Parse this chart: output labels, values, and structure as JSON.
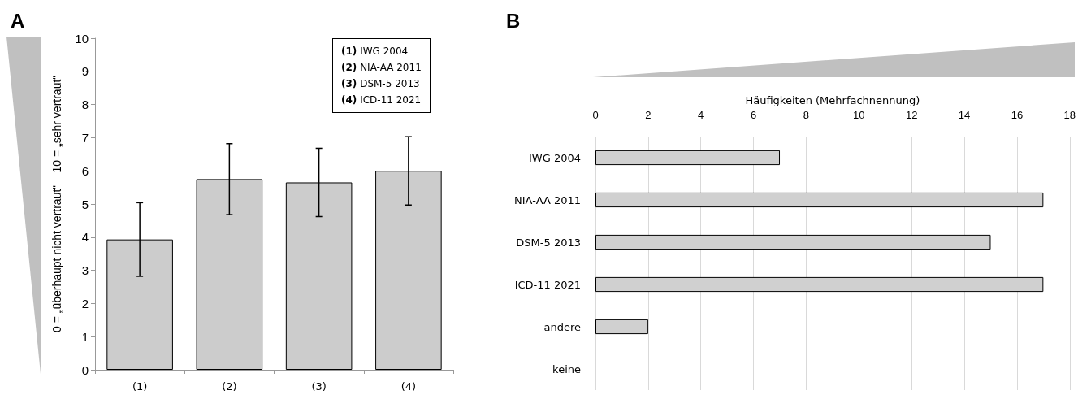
{
  "chart_data": [
    {
      "type": "bar",
      "title": "A",
      "ylabel": "0 = „überhaupt nicht vertraut“ – 10 = „sehr vertraut“",
      "categories": [
        "(1)",
        "(2)",
        "(3)",
        "(4)"
      ],
      "values": [
        3.93,
        5.75,
        5.65,
        6.0
      ],
      "errors": [
        1.11,
        1.07,
        1.03,
        1.03
      ],
      "color": "#cccccc",
      "ylim": [
        0,
        10
      ],
      "yticks": [
        0,
        1,
        2,
        3,
        4,
        5,
        6,
        7,
        8,
        9,
        10
      ],
      "grid": false,
      "annotations": [
        "(1) IWG 2004",
        "(2) NIA-AA 2011",
        "(3) DSM-5 2013",
        "(4) ICD-11 2021"
      ]
    },
    {
      "type": "bar",
      "orientation": "horizontal",
      "title": "B",
      "xlabel": "Häufigkeiten (Mehrfachnennung)",
      "categories": [
        "IWG 2004",
        "NIA-AA 2011",
        "DSM-5 2013",
        "ICD-11 2021",
        "andere",
        "keine"
      ],
      "values": [
        7,
        17,
        15,
        17,
        2,
        0
      ],
      "color": "#d0d0d0",
      "xlim": [
        0,
        18
      ],
      "xticks": [
        0,
        2,
        4,
        6,
        8,
        10,
        12,
        14,
        16,
        18
      ],
      "grid": "x"
    }
  ]
}
